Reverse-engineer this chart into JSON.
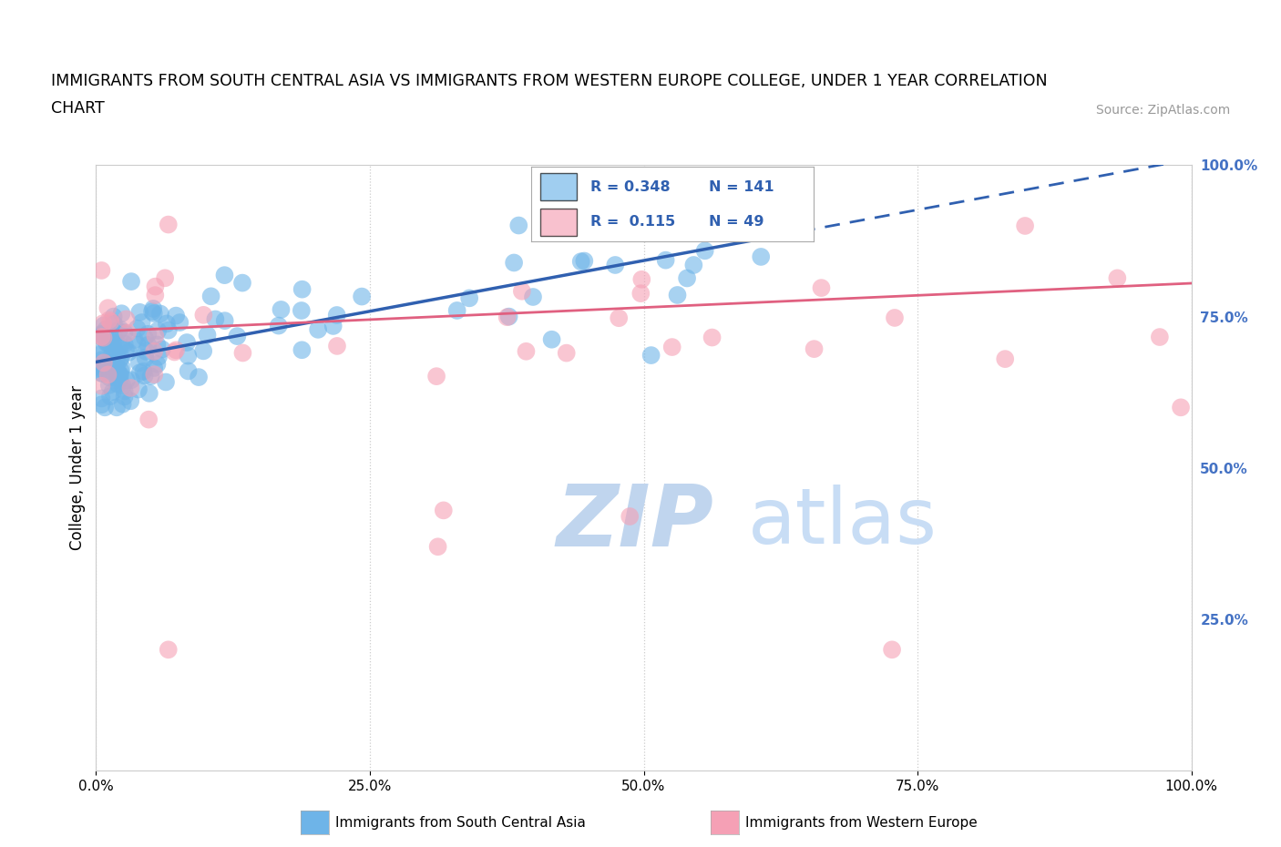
{
  "title_line1": "IMMIGRANTS FROM SOUTH CENTRAL ASIA VS IMMIGRANTS FROM WESTERN EUROPE COLLEGE, UNDER 1 YEAR CORRELATION",
  "title_line2": "CHART",
  "source_text": "Source: ZipAtlas.com",
  "ylabel": "College, Under 1 year",
  "xlim": [
    0.0,
    1.0
  ],
  "ylim": [
    0.0,
    1.0
  ],
  "xtick_labels": [
    "0.0%",
    "25.0%",
    "50.0%",
    "75.0%",
    "100.0%"
  ],
  "xtick_values": [
    0.0,
    0.25,
    0.5,
    0.75,
    1.0
  ],
  "ytick_labels_right": [
    "25.0%",
    "50.0%",
    "75.0%",
    "100.0%"
  ],
  "ytick_values_right": [
    0.25,
    0.5,
    0.75,
    1.0
  ],
  "blue_color": "#6EB4E8",
  "pink_color": "#F5A0B5",
  "blue_line_color": "#3060B0",
  "pink_line_color": "#E06080",
  "right_axis_color": "#4472C4",
  "legend_value_color": "#3060B0",
  "watermark_zip_color": "#C0D5EE",
  "watermark_atlas_color": "#C8DDF5",
  "legend_R1": "0.348",
  "legend_N1": "141",
  "legend_R2": "0.115",
  "legend_N2": "49",
  "legend_label1": "Immigrants from South Central Asia",
  "legend_label2": "Immigrants from Western Europe",
  "blue_line_x0": 0.0,
  "blue_line_y0": 0.675,
  "blue_line_x1": 1.0,
  "blue_line_y1": 1.01,
  "blue_line_solid_end": 0.62,
  "pink_line_x0": 0.0,
  "pink_line_y0": 0.725,
  "pink_line_x1": 1.0,
  "pink_line_y1": 0.805
}
